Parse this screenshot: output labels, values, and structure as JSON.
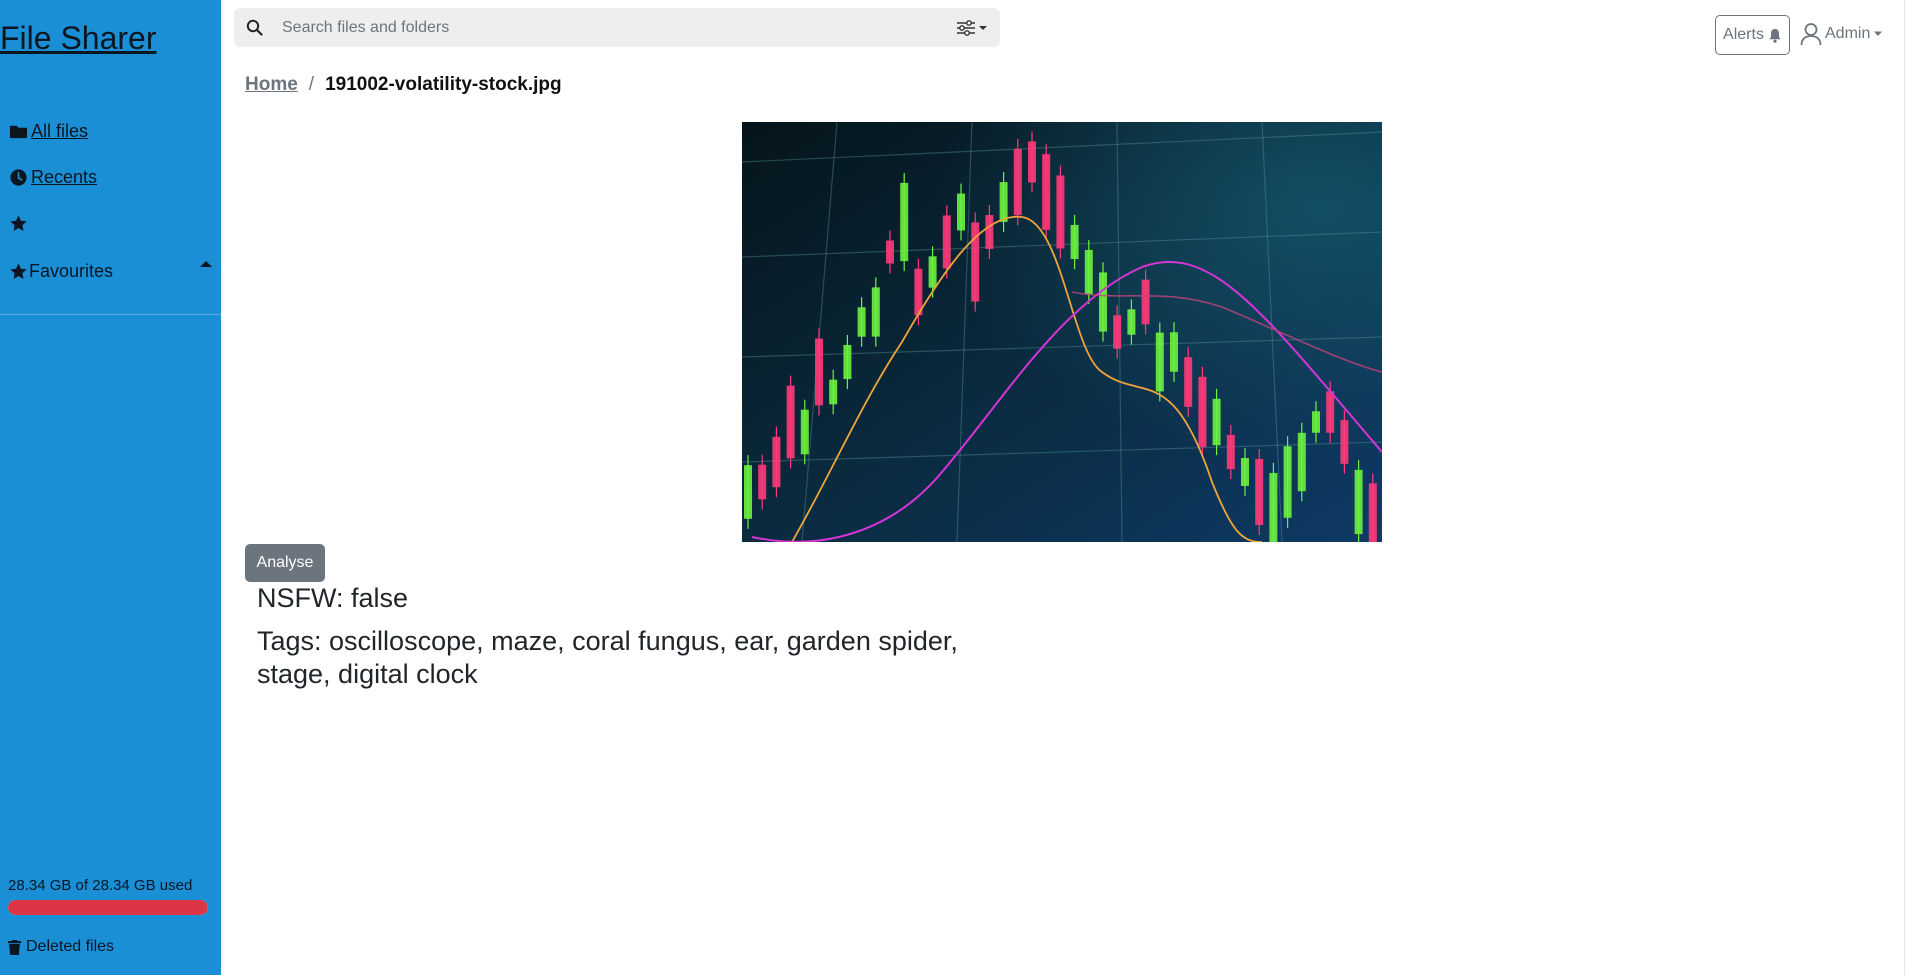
{
  "app": {
    "brand": "File Sharer"
  },
  "sidebar": {
    "items": [
      {
        "label": "All files",
        "icon": "folder-icon"
      },
      {
        "label": "Recents",
        "icon": "clock-icon"
      },
      {
        "label": "",
        "icon": "star-icon"
      },
      {
        "label": "Favourites",
        "icon": "star-icon"
      }
    ],
    "storage": {
      "text": "28.34 GB of 28.34 GB used",
      "used_fraction": 1.0,
      "bar_color": "#dc3545"
    },
    "deleted_label": "Deleted files"
  },
  "search": {
    "placeholder": "Search files and folders",
    "value": ""
  },
  "header": {
    "alerts_label": "Alerts",
    "user_label": "Admin"
  },
  "breadcrumb": {
    "home": "Home",
    "separator": "/",
    "current": "191002-volatility-stock.jpg"
  },
  "file": {
    "analyse_label": "Analyse",
    "nsfw_text": "NSFW: false",
    "tags_text": "Tags: oscilloscope, maze, coral fungus, ear, garden spider, stage, digital clock"
  },
  "colors": {
    "sidebar_bg": "#1b8fd6",
    "accent_secondary": "#6c757d",
    "danger": "#dc3545"
  }
}
